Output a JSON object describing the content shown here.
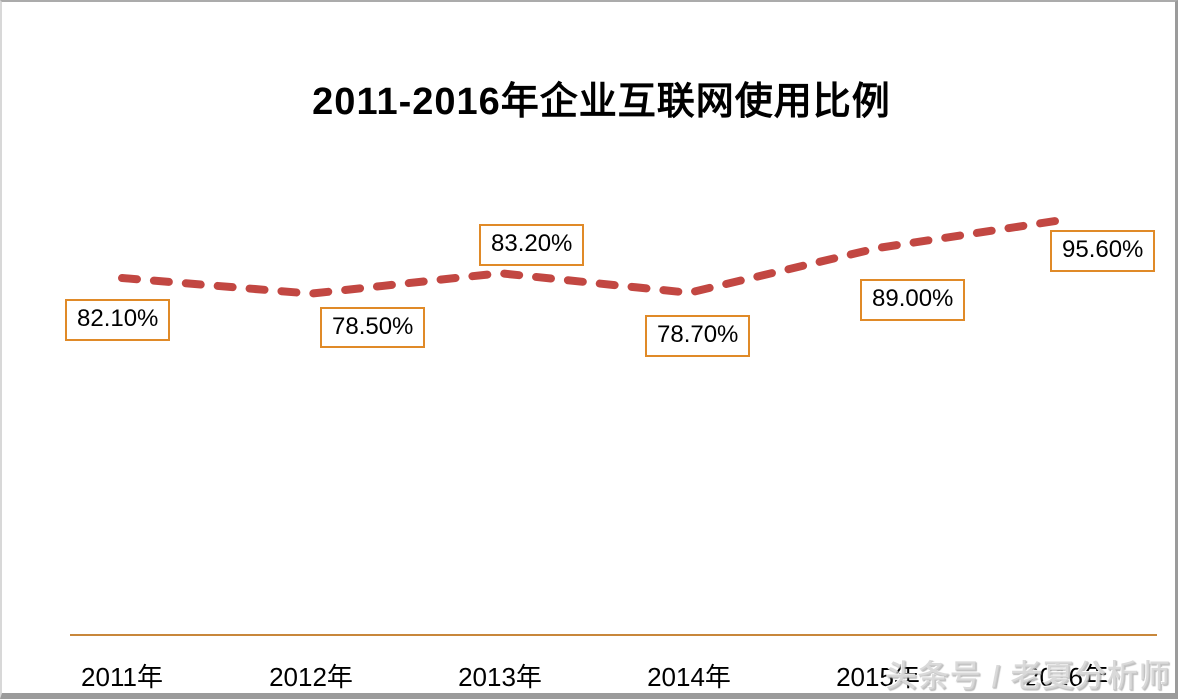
{
  "chart_data": {
    "type": "line",
    "title": "2011-2016年企业互联网使用比例",
    "categories": [
      "2011年",
      "2012年",
      "2013年",
      "2014年",
      "2015年",
      "2016年"
    ],
    "values": [
      82.1,
      78.5,
      83.2,
      78.7,
      89.0,
      95.6
    ],
    "point_labels": [
      "82.10%",
      "78.50%",
      "83.20%",
      "78.70%",
      "89.00%",
      "95.60%"
    ],
    "ylim": [
      70,
      100
    ],
    "grid": false,
    "legend": false,
    "line_style": "dashed",
    "colors": {
      "line": "#c24742",
      "label_box_border": "#e08a28",
      "label_text": "#000000",
      "axis_line": "#c8873b",
      "axis_text": "#000000"
    }
  },
  "watermark": {
    "text": "头条号 / 老夏分析师"
  }
}
